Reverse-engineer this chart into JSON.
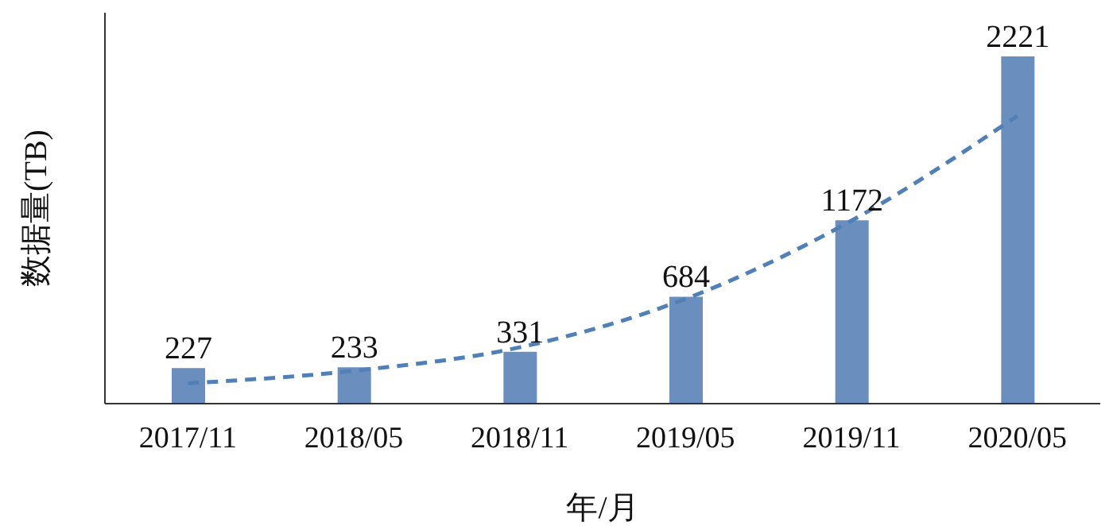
{
  "chart_data": {
    "type": "bar",
    "categories": [
      "2017/11",
      "2018/05",
      "2018/11",
      "2019/05",
      "2019/11",
      "2020/05"
    ],
    "series": [
      {
        "color": "#6a8fbf",
        "values": [
          227,
          233,
          331,
          684,
          1172,
          2221
        ],
        "data_labels": true
      },
      {
        "type": "line",
        "color": "#5080b8",
        "x": [
          "2017/11",
          "2018/05",
          "2018/11",
          "2019/05",
          "2019/11",
          "2020/05"
        ],
        "values": [
          130,
          210,
          360,
          670,
          1170,
          1840
        ],
        "line_style": "dashed",
        "marker": "none"
      }
    ],
    "xlabel": "年/月",
    "ylabel": "数据量(TB)",
    "ylim": [
      0,
      2500
    ],
    "tick_labels": "x"
  }
}
